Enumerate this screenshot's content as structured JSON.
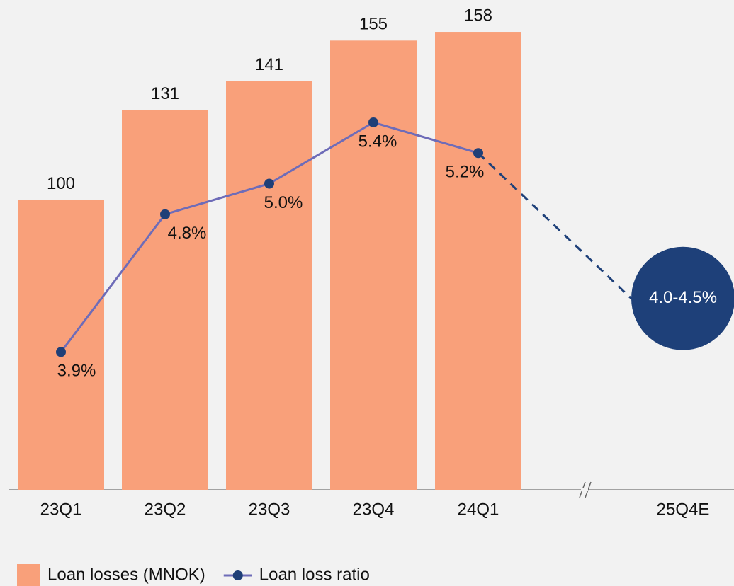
{
  "chart_data": {
    "type": "combo",
    "categories": [
      "23Q1",
      "23Q2",
      "23Q3",
      "23Q4",
      "24Q1",
      "25Q4E"
    ],
    "series": [
      {
        "name": "Loan losses (MNOK)",
        "type": "bar",
        "color": "#f9a07a",
        "values": [
          100,
          131,
          141,
          155,
          158,
          null
        ]
      },
      {
        "name": "Loan loss ratio",
        "type": "line",
        "axis": "y2",
        "color": "#6e6cb8",
        "marker_color": "#1f3f77",
        "values": [
          3.9,
          4.8,
          5.0,
          5.4,
          5.2,
          null
        ],
        "value_labels": [
          "3.9%",
          "4.8%",
          "5.0%",
          "5.4%",
          "5.2%",
          null
        ]
      }
    ],
    "target_label": "4.0-4.5%",
    "target_range": [
      4.0,
      4.5
    ],
    "target_color": "#1e4079",
    "ylim": [
      0,
      169
    ],
    "y2lim": [
      3.0,
      6.2
    ],
    "legend": "bottom-left"
  }
}
